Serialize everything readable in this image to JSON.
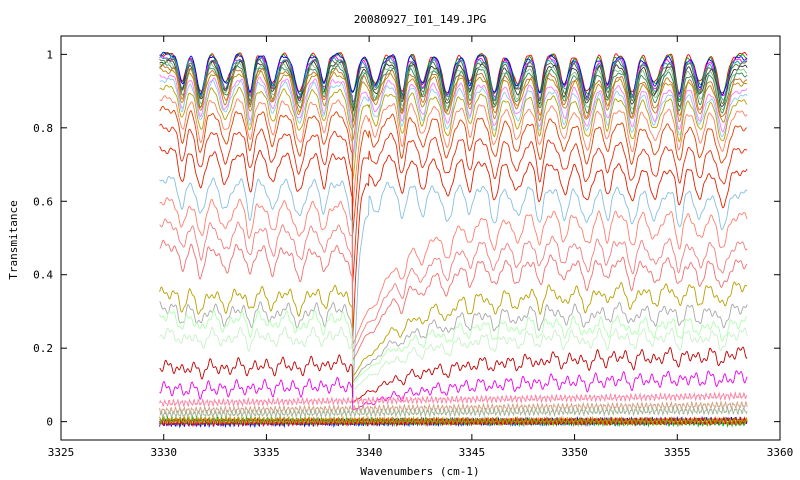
{
  "chart_data": {
    "type": "line",
    "title": "20080927_I01_149.JPG",
    "xlabel": "Wavenumbers (cm-1)",
    "ylabel": "Transmitance",
    "xlim": [
      3325,
      3360
    ],
    "ylim": [
      -0.05,
      1.05
    ],
    "xticks": [
      "3325",
      "3330",
      "3335",
      "3340",
      "3345",
      "3350",
      "3355",
      "3360"
    ],
    "yticks": [
      "0",
      "0.2",
      "0.4",
      "0.6",
      "0.8",
      "1"
    ],
    "x_range": [
      3329.8,
      3358.4
    ],
    "step_edge": 3339.2,
    "absorption_lines": [
      3330.9,
      3331.8,
      3333.0,
      3334.2,
      3335.3,
      3336.6,
      3337.8,
      3339.2,
      3340.3,
      3341.6,
      3342.6,
      3343.8,
      3344.9,
      3346.1,
      3347.2,
      3348.3,
      3349.5,
      3350.6,
      3351.6,
      3352.8,
      3353.9,
      3355.1,
      3356.1,
      3357.2
    ],
    "series": [
      {
        "color": "#ff0000",
        "left": 1.0,
        "right": 1.0
      },
      {
        "color": "#009900",
        "left": 1.0,
        "right": 0.995
      },
      {
        "color": "#0000ff",
        "left": 1.0,
        "right": 0.99
      },
      {
        "color": "#ff00ff",
        "left": 0.99,
        "right": 0.985
      },
      {
        "color": "#00aaaa",
        "left": 0.99,
        "right": 0.98
      },
      {
        "color": "#556b2f",
        "left": 0.985,
        "right": 0.975
      },
      {
        "color": "#333333",
        "left": 0.98,
        "right": 0.965
      },
      {
        "color": "#7fbf7f",
        "left": 0.975,
        "right": 0.955
      },
      {
        "color": "#2e8b57",
        "left": 0.97,
        "right": 0.945
      },
      {
        "color": "#d2691e",
        "left": 0.965,
        "right": 0.93
      },
      {
        "color": "#b8860b",
        "left": 0.955,
        "right": 0.92
      },
      {
        "color": "#ff77ff",
        "left": 0.94,
        "right": 0.9
      },
      {
        "color": "#87ceeb",
        "left": 0.93,
        "right": 0.885
      },
      {
        "color": "#b8a000",
        "left": 0.91,
        "right": 0.87
      },
      {
        "color": "#ff8060",
        "left": 0.88,
        "right": 0.84
      },
      {
        "color": "#e04000",
        "left": 0.85,
        "right": 0.8
      },
      {
        "color": "#e83010",
        "left": 0.8,
        "right": 0.74
      },
      {
        "color": "#e02000",
        "left": 0.74,
        "right": 0.68
      },
      {
        "color": "#87bfe0",
        "left": 0.66,
        "right": 0.62
      },
      {
        "color": "#ff8070",
        "left": 0.6,
        "right": 0.56
      },
      {
        "color": "#f08080",
        "left": 0.54,
        "right": 0.48
      },
      {
        "color": "#f07070",
        "left": 0.48,
        "right": 0.43
      },
      {
        "color": "#b8a000",
        "left": 0.35,
        "right": 0.37
      },
      {
        "color": "#a8a8a8",
        "left": 0.31,
        "right": 0.31
      },
      {
        "color": "#b0ffb0",
        "left": 0.29,
        "right": 0.27
      },
      {
        "color": "#c8f0c8",
        "left": 0.24,
        "right": 0.24
      },
      {
        "color": "#c00000",
        "left": 0.15,
        "right": 0.19
      },
      {
        "color": "#ee00ee",
        "left": 0.09,
        "right": 0.125
      },
      {
        "color": "#ff80a0",
        "left": 0.05,
        "right": 0.07
      },
      {
        "color": "#d0a080",
        "left": 0.03,
        "right": 0.045
      },
      {
        "color": "#a0b090",
        "left": 0.02,
        "right": 0.03
      },
      {
        "color": "#303030",
        "left": 0.0,
        "right": 0.0
      },
      {
        "color": "#0000ff",
        "left": -0.005,
        "right": 0.003
      },
      {
        "color": "#00bb00",
        "left": 0.003,
        "right": -0.003
      },
      {
        "color": "#ff0000",
        "left": -0.002,
        "right": 0.002
      },
      {
        "color": "#b8a000",
        "left": 0.004,
        "right": 0.001
      }
    ]
  }
}
